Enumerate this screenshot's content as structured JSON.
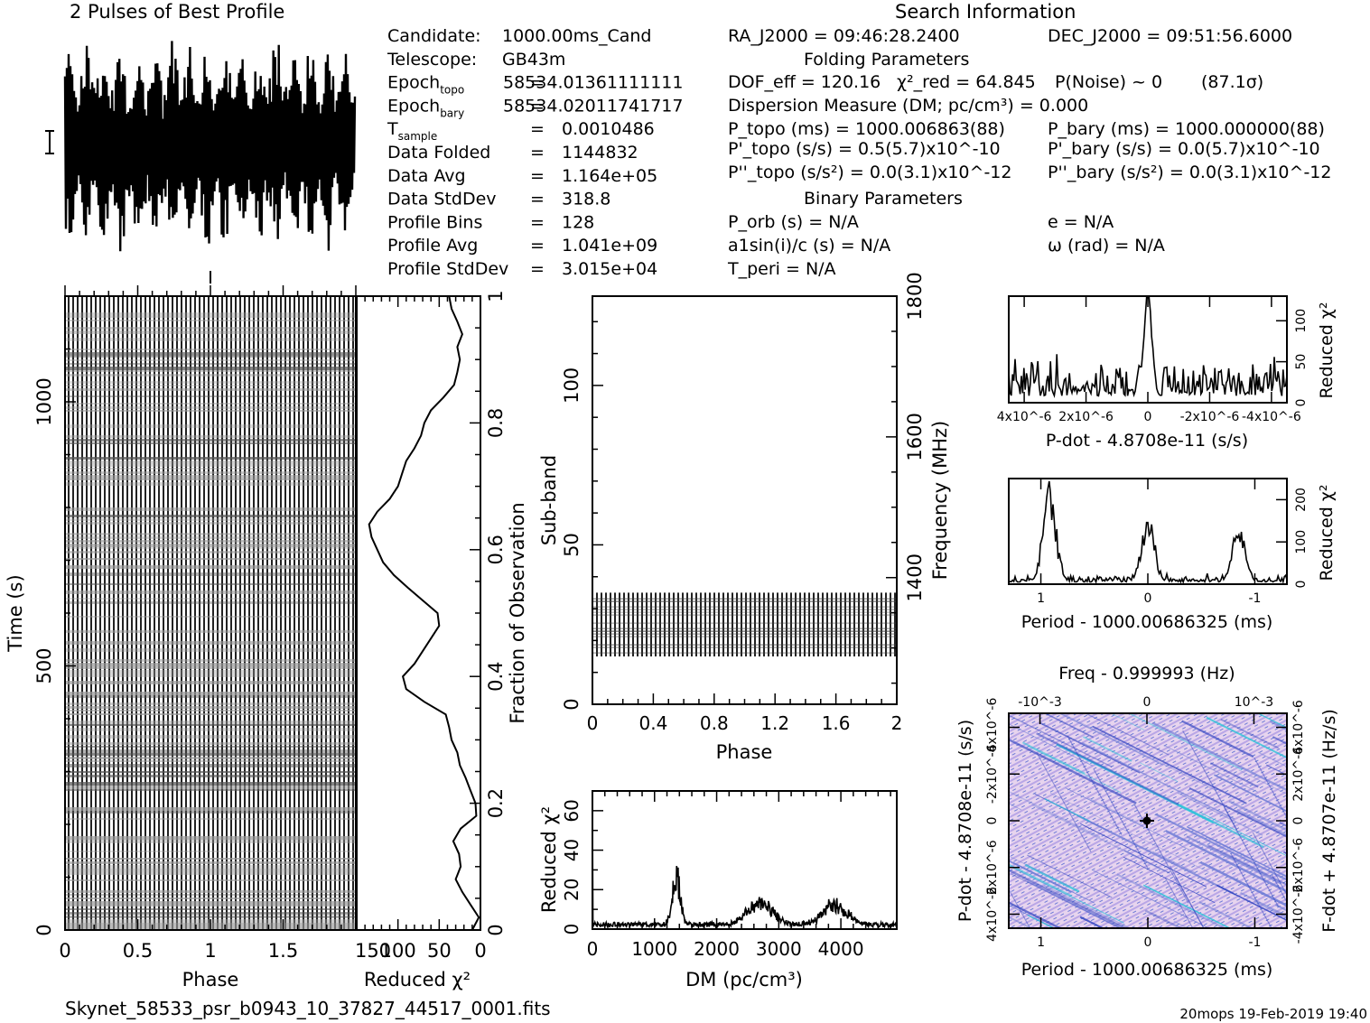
{
  "header": {
    "profile_title": "2 Pulses of Best Profile",
    "search_title": "Search Information",
    "folding_title": "Folding Parameters",
    "binary_title": "Binary Parameters"
  },
  "info_left": [
    {
      "label": "Candidate:",
      "eq": "",
      "value": "1000.00ms_Cand"
    },
    {
      "label": "Telescope:",
      "eq": "",
      "value": "GB43m"
    },
    {
      "label": "Epoch",
      "sub": "topo",
      "eq": "=",
      "value": "58534.01361111111"
    },
    {
      "label": "Epoch",
      "sub": "bary",
      "eq": "=",
      "value": "58534.02011741717"
    },
    {
      "label": "T",
      "sub": "sample",
      "eq": "=",
      "value": "0.0010486"
    },
    {
      "label": "Data Folded",
      "eq": "=",
      "value": "1144832"
    },
    {
      "label": "Data Avg",
      "eq": "=",
      "value": "1.164e+05"
    },
    {
      "label": "Data StdDev",
      "eq": "=",
      "value": "318.8"
    },
    {
      "label": "Profile Bins",
      "eq": "=",
      "value": "128"
    },
    {
      "label": "Profile Avg",
      "eq": "=",
      "value": "1.041e+09"
    },
    {
      "label": "Profile StdDev",
      "eq": "=",
      "value": "3.015e+04"
    }
  ],
  "info_right": {
    "ra": "RA_J2000 = 09:46:28.2400",
    "dec": "DEC_J2000 = 09:51:56.6000",
    "dof": "DOF_eff = 120.16",
    "chi2": "χ²_red = 64.845",
    "pnoise": "P(Noise) ~ 0",
    "sigma": "(87.1σ)",
    "dm": "Dispersion Measure (DM; pc/cm³) = 0.000",
    "ptopo": "P_topo (ms) = 1000.006863(88)",
    "pbary": "P_bary (ms) = 1000.000000(88)",
    "pdtopo": "P'_topo (s/s) = 0.5(5.7)x10^-10",
    "pdbary": "P'_bary (s/s) = 0.0(5.7)x10^-10",
    "pddtopo": "P''_topo (s/s²) = 0.0(3.1)x10^-12",
    "pddbary": "P''_bary (s/s²) = 0.0(3.1)x10^-12",
    "porb": "P_orb (s) = N/A",
    "ecc": "e = N/A",
    "asini": "a1sin(i)/c (s) = N/A",
    "omega": "ω (rad) = N/A",
    "tperi": "T_peri = N/A"
  },
  "footer": {
    "filename": "Skynet_58533_psr_b0943_10_37827_44517_0001.fits",
    "stamp": "20mops 19-Feb-2019 19:40"
  },
  "chart_data": [
    {
      "id": "profile",
      "type": "line",
      "title": "2 Pulses of Best Profile",
      "x_range": [
        0,
        2
      ],
      "note": "dense noise-like oscillating profile, 256 points over 2 pulses"
    },
    {
      "id": "time_phase",
      "type": "heatmap",
      "xlabel": "Phase",
      "ylabel": "Time (s)",
      "x_ticks": [
        "0",
        "0.5",
        "1",
        "1.5"
      ],
      "y_ticks": [
        "0",
        "500",
        "1000"
      ],
      "x_range": [
        0,
        2
      ],
      "y_range": [
        0,
        1200
      ]
    },
    {
      "id": "time_chi2",
      "type": "line",
      "xlabel": "Reduced χ²",
      "ylabel": "Fraction of Observation",
      "x_ticks": [
        "150",
        "100",
        "50",
        "0"
      ],
      "y_ticks": [
        "0",
        "0.2",
        "0.4",
        "0.6",
        "0.8",
        "1"
      ],
      "x_range": [
        150,
        0
      ],
      "y_range": [
        0,
        1
      ],
      "fraction": [
        0,
        0.02,
        0.04,
        0.06,
        0.08,
        0.1,
        0.12,
        0.14,
        0.16,
        0.18,
        0.2,
        0.22,
        0.24,
        0.26,
        0.28,
        0.3,
        0.32,
        0.34,
        0.36,
        0.38,
        0.4,
        0.42,
        0.44,
        0.46,
        0.48,
        0.5,
        0.52,
        0.54,
        0.56,
        0.58,
        0.6,
        0.62,
        0.64,
        0.66,
        0.68,
        0.7,
        0.72,
        0.74,
        0.76,
        0.78,
        0.8,
        0.82,
        0.84,
        0.86,
        0.88,
        0.9,
        0.92,
        0.94,
        0.96,
        0.98,
        1.0
      ],
      "chi2": [
        10,
        2,
        12,
        22,
        30,
        24,
        26,
        33,
        24,
        5,
        6,
        12,
        18,
        25,
        28,
        35,
        38,
        42,
        68,
        90,
        94,
        80,
        70,
        60,
        50,
        52,
        70,
        88,
        105,
        118,
        125,
        132,
        135,
        125,
        110,
        100,
        95,
        90,
        80,
        72,
        68,
        60,
        45,
        32,
        28,
        25,
        28,
        22,
        28,
        35,
        38
      ]
    },
    {
      "id": "subband_phase",
      "type": "heatmap",
      "xlabel": "Phase",
      "ylabel": "Sub-band",
      "y2label": "Frequency (MHz)",
      "x_ticks": [
        "0",
        "0.4",
        "0.8",
        "1.2",
        "1.6",
        "2"
      ],
      "y_ticks": [
        "0",
        "50",
        "100"
      ],
      "y2_ticks": [
        "1400",
        "1600",
        "1800"
      ],
      "x_range": [
        0,
        2
      ],
      "y_range": [
        0,
        128
      ],
      "signal_band": [
        15,
        35
      ]
    },
    {
      "id": "dm_chi2",
      "type": "line",
      "xlabel": "DM (pc/cm³)",
      "ylabel": "Reduced χ²",
      "x_ticks": [
        "0",
        "1000",
        "2000",
        "3000",
        "4000"
      ],
      "y_ticks": [
        "0",
        "20",
        "40",
        "60"
      ],
      "x_range": [
        0,
        4900
      ],
      "y_range": [
        0,
        70
      ],
      "peaks": [
        {
          "x": 1350,
          "y": 30
        },
        {
          "x": 2700,
          "y": 14
        },
        {
          "x": 3900,
          "y": 12
        }
      ]
    },
    {
      "id": "pdot_chi2",
      "type": "line",
      "xlabel": "P-dot - 4.8708e-11 (s/s)",
      "ylabel": "Reduced χ²",
      "x_ticks": [
        "4x10^-6",
        "2x10^-6",
        "0",
        "-2x10^-6",
        "-4x10^-6"
      ],
      "y_ticks": [
        "0",
        "50",
        "100"
      ],
      "x_range": [
        4.5e-06,
        -4.5e-06
      ],
      "y_range": [
        0,
        130
      ],
      "peak": {
        "x": 0,
        "y": 125
      }
    },
    {
      "id": "period_chi2",
      "type": "line",
      "xlabel": "Period - 1000.00686325 (ms)",
      "ylabel": "Reduced χ²",
      "x_ticks": [
        "1",
        "0",
        "-1"
      ],
      "y_ticks": [
        "0",
        "100",
        "200"
      ],
      "x_range": [
        1.3,
        -1.3
      ],
      "y_range": [
        0,
        250
      ],
      "peaks": [
        {
          "x": 0.92,
          "y": 240
        },
        {
          "x": 0,
          "y": 170
        },
        {
          "x": -0.85,
          "y": 130
        }
      ]
    },
    {
      "id": "period_pdot",
      "type": "heatmap",
      "title": "Freq - 0.999993 (Hz)",
      "xlabel": "Period - 1000.00686325 (ms)",
      "ylabel": "P-dot - 4.8708e-11 (s/s)",
      "y2label": "F-dot + 4.8707e-11 (Hz/s)",
      "x_ticks": [
        "1",
        "0",
        "-1"
      ],
      "x2_ticks": [
        "-10^-3",
        "0",
        "10^-3"
      ],
      "y_ticks": [
        "4x10^-6",
        "2x10^-6",
        "0",
        "-2x10^-6",
        "-4x10^-6"
      ],
      "y2_ticks": [
        "-4x10^-6",
        "-2x10^-6",
        "0",
        "2x10^-6",
        "4x10^-6"
      ],
      "colors": [
        "#f2e3f1",
        "#c9b4e8",
        "#6c7bd6",
        "#2a3fbf",
        "#22c3d8",
        "#000000"
      ]
    }
  ]
}
